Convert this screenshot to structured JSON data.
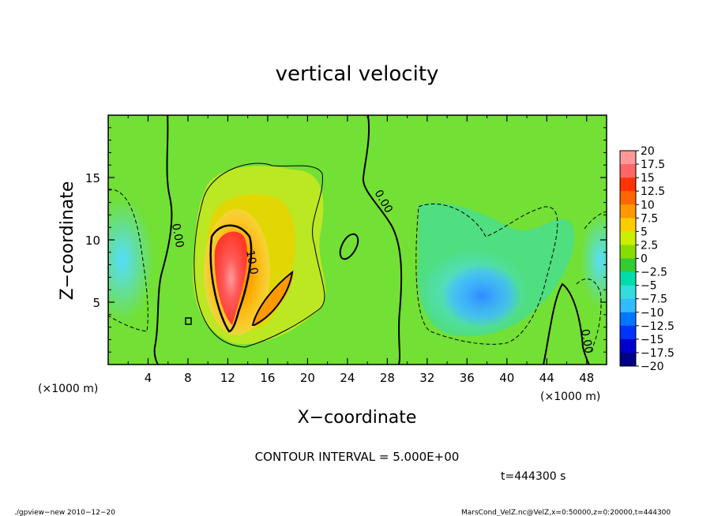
{
  "chart_data": {
    "type": "heatmap",
    "title": "vertical velocity",
    "xlabel": "X−coordinate",
    "ylabel": "Z−coordinate",
    "x_unit_left": "(×1000 m)",
    "x_unit_right": "(×1000 m)",
    "xlim": [
      0,
      50
    ],
    "ylim": [
      0,
      20
    ],
    "x_ticks": [
      4,
      8,
      12,
      16,
      20,
      24,
      28,
      32,
      36,
      40,
      44,
      48
    ],
    "y_ticks": [
      5,
      10,
      15
    ],
    "colorbar": {
      "labels": [
        "20",
        "17.5",
        "15",
        "12.5",
        "10",
        "7.5",
        "5",
        "2.5",
        "0",
        "−2.5",
        "−5",
        "−7.5",
        "−10",
        "−12.5",
        "−15",
        "−17.5",
        "−20"
      ],
      "colors": [
        "#ff9999",
        "#ff6666",
        "#ff3300",
        "#ff6600",
        "#ff9900",
        "#ffcc00",
        "#ccee00",
        "#88dd00",
        "#33cc33",
        "#00ddaa",
        "#33dddd",
        "#33bbff",
        "#0077ff",
        "#0033ff",
        "#0000cc",
        "#000088",
        "#6600aa"
      ]
    },
    "contour_labels": [
      "0.00",
      "10.0",
      "0.00",
      "0.00"
    ],
    "contour_interval_text": "CONTOUR INTERVAL = 5.000E+00",
    "time_text": "t=444300 s",
    "footer_left": "./gpview−new  2010−12−20",
    "footer_right": "MarsCond_VelZ.nc@VelZ,x=0:50000,z=0:20000,t=444300"
  }
}
